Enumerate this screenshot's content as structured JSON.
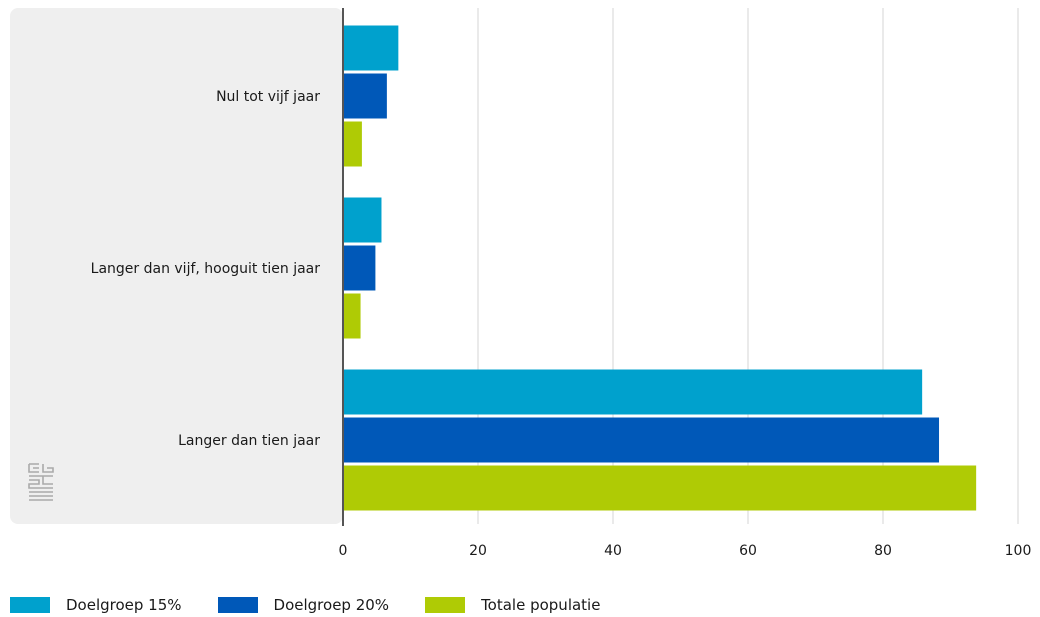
{
  "chart_data": {
    "type": "bar",
    "orientation": "horizontal",
    "title": "",
    "xlabel": "",
    "ylabel": "",
    "categories": [
      "Nul tot vijf jaar",
      "Langer dan vijf, hooguit tien jaar",
      "Langer dan tien jaar"
    ],
    "series": [
      {
        "name": "Doelgroep 15%",
        "color": "#00a1cd",
        "values": [
          8.2,
          5.7,
          85.8
        ]
      },
      {
        "name": "Doelgroep 20%",
        "color": "#0058b8",
        "values": [
          6.5,
          4.8,
          88.3
        ]
      },
      {
        "name": "Totale populatie",
        "color": "#afcb05",
        "values": [
          2.8,
          2.6,
          93.8
        ]
      }
    ],
    "xlim": [
      0,
      100
    ],
    "xticks": [
      "0",
      "20",
      "40",
      "60",
      "80",
      "100"
    ],
    "grid": true,
    "legend_position": "bottom-left"
  },
  "colors": {
    "label_panel": "#efefef",
    "axis": "#555555",
    "grid": "#d6d6d6",
    "logo": "#aaaaaa"
  },
  "logo": {
    "icon": "cbs-logo-icon"
  }
}
